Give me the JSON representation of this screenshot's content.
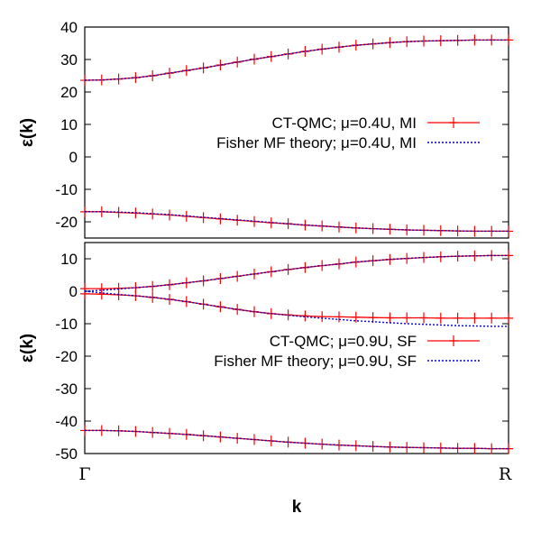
{
  "figure": {
    "xlabel": "k",
    "x_tick_labels": [
      "Γ",
      "R"
    ]
  },
  "chart_data": [
    {
      "type": "line",
      "ylabel": "ε(k)",
      "ylim": [
        -25,
        40
      ],
      "yticks": [
        40,
        30,
        20,
        10,
        0,
        -10,
        -20
      ],
      "x": [
        0,
        0.04,
        0.08,
        0.12,
        0.16,
        0.2,
        0.24,
        0.28,
        0.32,
        0.36,
        0.4,
        0.44,
        0.48,
        0.52,
        0.56,
        0.6,
        0.64,
        0.68,
        0.72,
        0.76,
        0.8,
        0.84,
        0.88,
        0.92,
        0.96,
        1.0
      ],
      "series": [
        {
          "name": "CT-QMC; μ=0.4U, MI",
          "color": "#ff0000",
          "style": "line-with-plus-markers",
          "branches": [
            [
              23.6,
              23.7,
              24.0,
              24.4,
              25.0,
              25.8,
              26.6,
              27.4,
              28.3,
              29.2,
              30.1,
              30.9,
              31.7,
              32.5,
              33.2,
              33.8,
              34.4,
              34.8,
              35.2,
              35.5,
              35.7,
              35.8,
              35.9,
              36.0,
              36.0,
              36.0
            ],
            [
              -16.9,
              -16.9,
              -17.1,
              -17.3,
              -17.6,
              -17.9,
              -18.3,
              -18.7,
              -19.1,
              -19.5,
              -19.9,
              -20.3,
              -20.6,
              -21.0,
              -21.3,
              -21.6,
              -21.9,
              -22.1,
              -22.3,
              -22.5,
              -22.6,
              -22.7,
              -22.8,
              -22.9,
              -22.9,
              -22.9
            ]
          ]
        },
        {
          "name": "Fisher MF theory; μ=0.4U, MI",
          "color": "#0000cc",
          "style": "dotted",
          "branches": [
            [
              23.6,
              23.7,
              24.0,
              24.4,
              25.0,
              25.8,
              26.6,
              27.4,
              28.3,
              29.2,
              30.1,
              30.9,
              31.7,
              32.5,
              33.2,
              33.8,
              34.4,
              34.8,
              35.2,
              35.5,
              35.7,
              35.8,
              35.9,
              36.0,
              36.0,
              36.0
            ],
            [
              -16.9,
              -16.9,
              -17.0,
              -17.2,
              -17.5,
              -17.8,
              -18.2,
              -18.6,
              -19.0,
              -19.4,
              -19.8,
              -20.2,
              -20.6,
              -21.0,
              -21.3,
              -21.6,
              -21.9,
              -22.1,
              -22.3,
              -22.5,
              -22.6,
              -22.7,
              -22.8,
              -22.9,
              -22.9,
              -22.9
            ]
          ]
        }
      ],
      "legend_position": "right"
    },
    {
      "type": "line",
      "ylabel": "ε(k)",
      "ylim": [
        -50,
        15
      ],
      "yticks": [
        10,
        0,
        -10,
        -20,
        -30,
        -40,
        -50
      ],
      "x": [
        0,
        0.04,
        0.08,
        0.12,
        0.16,
        0.2,
        0.24,
        0.28,
        0.32,
        0.36,
        0.4,
        0.44,
        0.48,
        0.52,
        0.56,
        0.6,
        0.64,
        0.68,
        0.72,
        0.76,
        0.8,
        0.84,
        0.88,
        0.92,
        0.96,
        1.0
      ],
      "series": [
        {
          "name": "CT-QMC; μ=0.9U, SF",
          "color": "#ff0000",
          "style": "line-with-plus-markers",
          "branches": [
            [
              0.8,
              0.8,
              0.9,
              1.1,
              1.5,
              2.0,
              2.6,
              3.2,
              3.9,
              4.6,
              5.3,
              6.0,
              6.7,
              7.3,
              7.9,
              8.4,
              9.0,
              9.4,
              9.8,
              10.1,
              10.4,
              10.6,
              10.8,
              10.9,
              11.0,
              11.0
            ],
            [
              -0.8,
              -0.9,
              -1.1,
              -1.4,
              -1.9,
              -2.5,
              -3.2,
              -4.0,
              -4.8,
              -5.6,
              -6.3,
              -6.9,
              -7.3,
              -7.6,
              -7.8,
              -7.9,
              -8.0,
              -8.1,
              -8.2,
              -8.2,
              -8.2,
              -8.3,
              -8.3,
              -8.3,
              -8.3,
              -8.3
            ],
            [
              -42.9,
              -42.9,
              -43.0,
              -43.2,
              -43.5,
              -43.8,
              -44.1,
              -44.5,
              -44.9,
              -45.3,
              -45.7,
              -46.1,
              -46.5,
              -46.8,
              -47.1,
              -47.4,
              -47.6,
              -47.8,
              -48.0,
              -48.1,
              -48.2,
              -48.3,
              -48.4,
              -48.4,
              -48.5,
              -48.5
            ]
          ]
        },
        {
          "name": "Fisher MF theory; μ=0.9U, SF",
          "color": "#0000cc",
          "style": "dotted",
          "branches": [
            [
              0.0,
              0.3,
              0.7,
              1.1,
              1.5,
              2.0,
              2.6,
              3.2,
              3.9,
              4.6,
              5.3,
              6.0,
              6.7,
              7.3,
              7.9,
              8.4,
              9.0,
              9.4,
              9.8,
              10.1,
              10.4,
              10.6,
              10.8,
              10.9,
              11.0,
              11.0
            ],
            [
              0.0,
              -0.5,
              -1.0,
              -1.4,
              -1.9,
              -2.5,
              -3.2,
              -4.0,
              -4.8,
              -5.6,
              -6.3,
              -6.9,
              -7.4,
              -7.9,
              -8.3,
              -8.7,
              -9.1,
              -9.4,
              -9.7,
              -10.0,
              -10.2,
              -10.4,
              -10.6,
              -10.7,
              -10.8,
              -10.8
            ],
            [
              -42.9,
              -42.9,
              -43.0,
              -43.2,
              -43.5,
              -43.8,
              -44.1,
              -44.5,
              -44.9,
              -45.3,
              -45.7,
              -46.1,
              -46.5,
              -46.8,
              -47.1,
              -47.4,
              -47.6,
              -47.8,
              -48.0,
              -48.1,
              -48.2,
              -48.3,
              -48.4,
              -48.4,
              -48.5,
              -48.5
            ]
          ]
        }
      ],
      "legend_position": "right"
    }
  ]
}
